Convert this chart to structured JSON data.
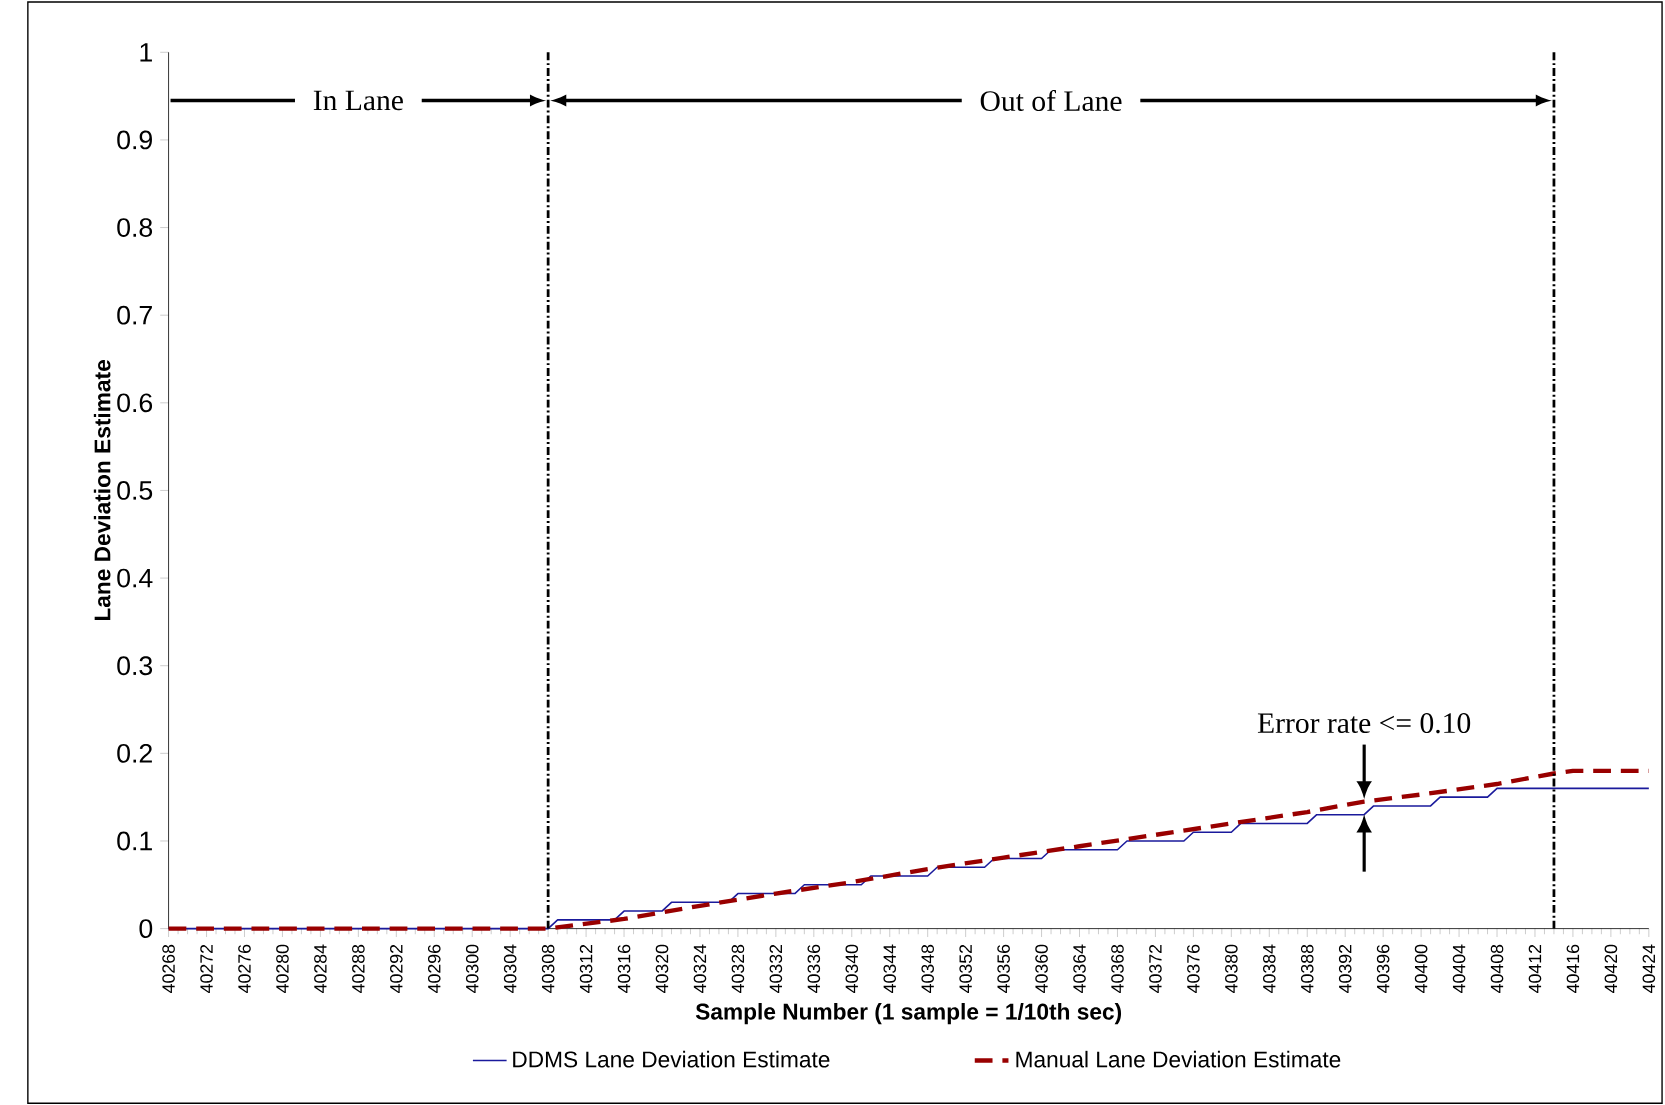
{
  "chart_data": {
    "type": "line",
    "xlabel": "Sample Number (1 sample = 1/10th sec)",
    "ylabel": "Lane Deviation Estimate",
    "xlim": [
      40268,
      40424
    ],
    "xticks": [
      40268,
      40272,
      40276,
      40280,
      40284,
      40288,
      40292,
      40296,
      40300,
      40304,
      40308,
      40312,
      40316,
      40320,
      40324,
      40328,
      40332,
      40336,
      40340,
      40344,
      40348,
      40352,
      40356,
      40360,
      40364,
      40368,
      40372,
      40376,
      40380,
      40384,
      40388,
      40392,
      40396,
      40400,
      40404,
      40408,
      40412,
      40416,
      40420,
      40424
    ],
    "ylim": [
      0,
      1
    ],
    "yticks": [
      0,
      0.1,
      0.2,
      0.3,
      0.4,
      0.5,
      0.6,
      0.7,
      0.8,
      0.9,
      1
    ],
    "legend": "bottom",
    "series": [
      {
        "name": "DDMS Lane Deviation Estimate",
        "color": "#1a1a9c",
        "line_style": "solid",
        "x": [
          40268,
          40308,
          40309,
          40315,
          40316,
          40320,
          40321,
          40327,
          40328,
          40334,
          40335,
          40341,
          40342,
          40348,
          40349,
          40354,
          40355,
          40360,
          40361,
          40368,
          40369,
          40375,
          40376,
          40380,
          40381,
          40388,
          40389,
          40394,
          40395,
          40401,
          40402,
          40407,
          40408,
          40424
        ],
        "values": [
          0,
          0,
          0.01,
          0.01,
          0.02,
          0.02,
          0.03,
          0.03,
          0.04,
          0.04,
          0.05,
          0.05,
          0.06,
          0.06,
          0.07,
          0.07,
          0.08,
          0.08,
          0.09,
          0.09,
          0.1,
          0.1,
          0.11,
          0.11,
          0.12,
          0.12,
          0.13,
          0.13,
          0.14,
          0.14,
          0.15,
          0.15,
          0.16,
          0.16
        ]
      },
      {
        "name": "Manual Lane Deviation Estimate",
        "color": "#990000",
        "line_style": "dashed",
        "x": [
          40268,
          40308,
          40316,
          40324,
          40332,
          40340,
          40348,
          40356,
          40364,
          40372,
          40380,
          40388,
          40394,
          40400,
          40408,
          40414,
          40416,
          40424
        ],
        "values": [
          0,
          0,
          0.011,
          0.026,
          0.04,
          0.053,
          0.068,
          0.081,
          0.094,
          0.107,
          0.12,
          0.133,
          0.145,
          0.153,
          0.165,
          0.177,
          0.18,
          0.18
        ]
      }
    ],
    "ref_lines": [
      {
        "axis": "x",
        "value": 40308,
        "color": "#000000",
        "line_style": "dashdot"
      },
      {
        "axis": "x",
        "value": 40414,
        "color": "#000000",
        "line_style": "dashdot"
      }
    ],
    "annotations": [
      "In Lane",
      "Out of Lane",
      {
        "text": "Error rate <= 0.10",
        "x": 40394,
        "y": 0.145
      }
    ]
  }
}
